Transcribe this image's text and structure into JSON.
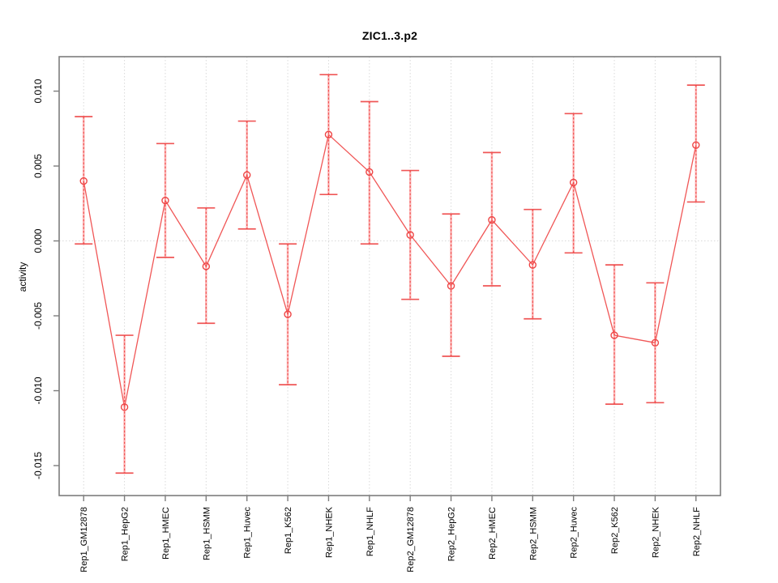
{
  "figure": {
    "title": "ZIC1..3.p2",
    "ylabel": "activity"
  },
  "chart_data": {
    "type": "line",
    "title": "ZIC1..3.p2",
    "xlabel": "",
    "ylabel": "activity",
    "legend": "none",
    "grid": "vertical dotted gridline at each category; dotted horizontal line at y=0",
    "marker": "open-circle with error bars (whisker caps)",
    "ylim": [
      -0.017,
      0.0123
    ],
    "yticks": [
      0.01,
      0.005,
      0.0,
      -0.005,
      -0.01,
      -0.015
    ],
    "ytick_labels": [
      "0.010",
      "0.005",
      "0.000",
      "-0.005",
      "-0.010",
      "-0.015"
    ],
    "categories": [
      "Rep1_GM12878",
      "Rep1_HepG2",
      "Rep1_HMEC",
      "Rep1_HSMM",
      "Rep1_Huvec",
      "Rep1_K562",
      "Rep1_NHEK",
      "Rep1_NHLF",
      "Rep2_GM12878",
      "Rep2_HepG2",
      "Rep2_HMEC",
      "Rep2_HSMM",
      "Rep2_Huvec",
      "Rep2_K562",
      "Rep2_NHEK",
      "Rep2_NHLF"
    ],
    "series": [
      {
        "name": "activity",
        "means": [
          0.004,
          -0.0111,
          0.0027,
          -0.0017,
          0.0044,
          -0.0049,
          0.0071,
          0.0046,
          0.0004,
          -0.003,
          0.0014,
          -0.0016,
          0.0039,
          -0.0063,
          -0.0068,
          0.0064
        ],
        "lower": [
          -0.0002,
          -0.0155,
          -0.0011,
          -0.0055,
          0.0008,
          -0.0096,
          0.0031,
          -0.0002,
          -0.0039,
          -0.0077,
          -0.003,
          -0.0052,
          -0.0008,
          -0.0109,
          -0.0108,
          0.0026
        ],
        "upper": [
          0.0083,
          -0.0063,
          0.0065,
          0.0022,
          0.008,
          -0.0002,
          0.0111,
          0.0093,
          0.0047,
          0.0018,
          0.0059,
          0.0021,
          0.0085,
          -0.0016,
          -0.0028,
          0.0104
        ]
      }
    ],
    "colors": {
      "series_red": "#ee4444",
      "series_red_soft": "#ff7a7a",
      "grid": "#d9d9d9",
      "axis_box": "#7d7d7d",
      "text": "#000000",
      "background": "#ffffff"
    }
  }
}
